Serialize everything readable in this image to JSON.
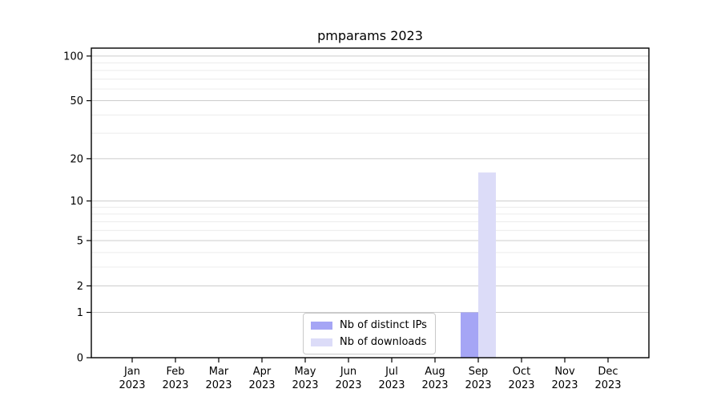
{
  "chart_data": {
    "type": "bar",
    "title": "pmparams 2023",
    "categories": [
      "Jan",
      "Feb",
      "Mar",
      "Apr",
      "May",
      "Jun",
      "Jul",
      "Aug",
      "Sep",
      "Oct",
      "Nov",
      "Dec"
    ],
    "x_year_label": "2023",
    "series": [
      {
        "name": "Nb of distinct IPs",
        "color": "#a5a5f5",
        "values": [
          0,
          0,
          0,
          0,
          0,
          0,
          0,
          0,
          1,
          0,
          0,
          0
        ]
      },
      {
        "name": "Nb of downloads",
        "color": "#dcdcf8",
        "values": [
          0,
          0,
          0,
          0,
          0,
          0,
          0,
          0,
          16,
          0,
          0,
          0
        ]
      }
    ],
    "yscale": "log1p",
    "yticks": [
      0,
      1,
      2,
      5,
      10,
      20,
      50,
      100
    ],
    "minor_yticks": [
      3,
      4,
      6,
      7,
      8,
      9,
      30,
      40,
      60,
      70,
      80,
      90
    ],
    "ylim": [
      0,
      113
    ],
    "grid": "horizontal",
    "legend_position": "lower center",
    "colors": {
      "major_grid": "#cccccc",
      "minor_grid": "#ececec",
      "axis": "#000000",
      "text": "#000000",
      "background": "#ffffff"
    }
  }
}
